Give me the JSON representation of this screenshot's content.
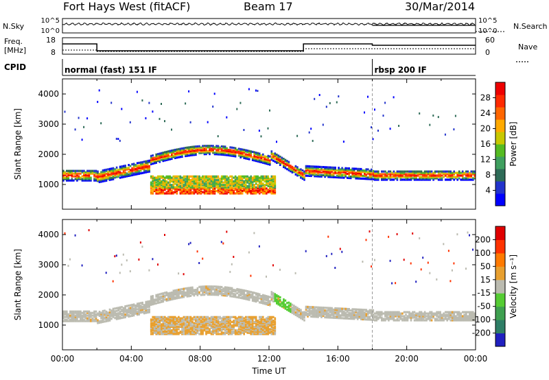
{
  "header": {
    "title": "Fort Hays West (fitACF)",
    "beam": "Beam 17",
    "date": "30/Mar/2014"
  },
  "aux": {
    "nsky_label": "N.Sky",
    "nsearch_label": "N.Search",
    "noise_ticks": [
      "10^5",
      "10^0"
    ],
    "noise_right_ticks": [
      "10^5",
      "10^0"
    ],
    "freq_label_1": "Freq.",
    "freq_label_2": "[MHz]",
    "freq_ticks": [
      "18",
      "8"
    ],
    "nave_label": "Nave",
    "nave_ticks": [
      "60",
      "0"
    ],
    "cpid_label": "CPID",
    "cpid_segments": [
      {
        "text": "normal (fast) 151 IF",
        "start_hour": 0
      },
      {
        "text": "rbsp 200 IF",
        "start_hour": 18
      }
    ]
  },
  "chart_data": [
    {
      "type": "heatmap",
      "name": "power",
      "ylabel": "Slant Range [km]",
      "yticks": [
        1000,
        2000,
        3000,
        4000
      ],
      "ylim": [
        180,
        4500
      ],
      "xlim": [
        0,
        24
      ],
      "colorbar_label": "Power [dB]",
      "colorbar_ticks": [
        "28",
        "24",
        "20",
        "16",
        "12",
        "8",
        "4"
      ],
      "colors": [
        "#0000ff",
        "#2233cc",
        "#2e6b57",
        "#3f9f5f",
        "#55bb22",
        "#c8c800",
        "#ffaa00",
        "#ff6600",
        "#ff2a00",
        "#ee0000"
      ]
    },
    {
      "type": "heatmap",
      "name": "velocity",
      "ylabel": "Slant Range [km]",
      "yticks": [
        1000,
        2000,
        3000,
        4000
      ],
      "ylim": [
        180,
        4500
      ],
      "xlim": [
        0,
        24
      ],
      "colorbar_label": "Velocity [m s⁻¹]",
      "colorbar_ticks": [
        "200",
        "100",
        "50",
        "15",
        "-15",
        "-50",
        "-100",
        "-200"
      ],
      "colors": [
        "#2020c0",
        "#2e7e66",
        "#3fa050",
        "#55cc33",
        "#bbbbb0",
        "#e8a030",
        "#ff7a00",
        "#ff3300",
        "#e00000"
      ]
    }
  ],
  "xaxis": {
    "ticks": [
      "00:00",
      "04:00",
      "08:00",
      "12:00",
      "16:00",
      "20:00",
      "00:00"
    ],
    "label": "Time UT"
  }
}
